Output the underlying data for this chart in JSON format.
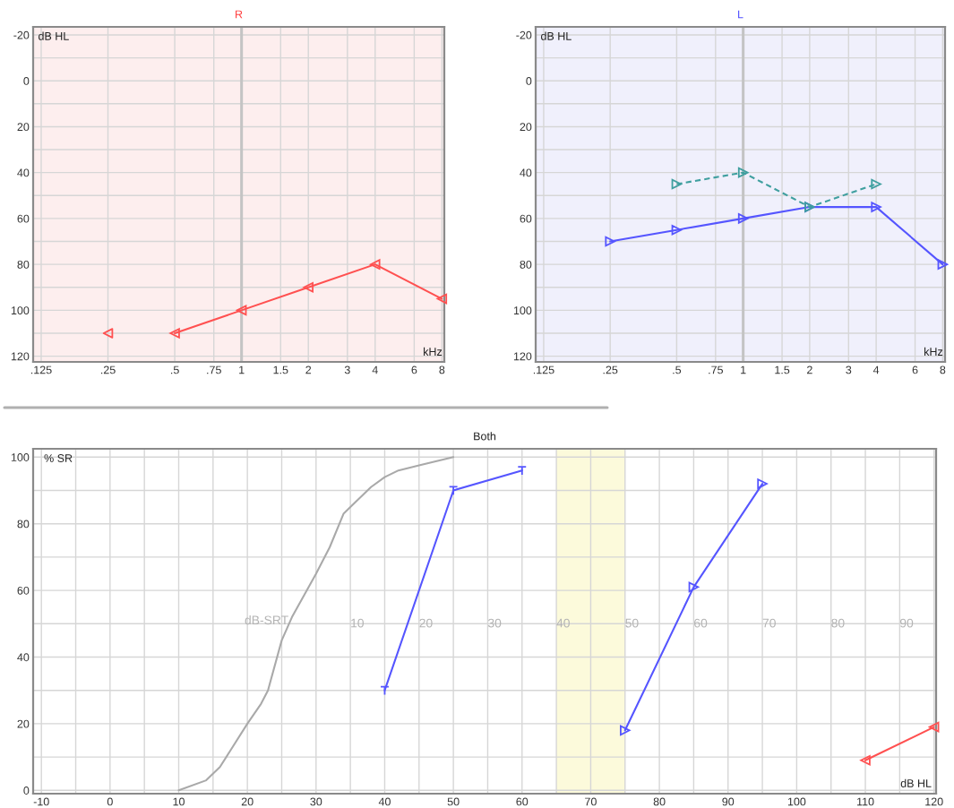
{
  "chart_data": [
    {
      "type": "line",
      "title": "R",
      "ylabel": "dB HL",
      "xlabel": "kHz",
      "log": "x",
      "grid": true,
      "xlim": [
        0.115,
        8.2
      ],
      "xticks": [
        {
          "value": 0.125,
          "label": ".125"
        },
        {
          "value": 0.25,
          "label": ".25"
        },
        {
          "value": 0.5,
          "label": ".5"
        },
        {
          "value": 0.75,
          "label": ".75"
        },
        1,
        1.5,
        2,
        3,
        4,
        6,
        8
      ],
      "ylim": [
        122.5,
        -23.5
      ],
      "yticks": [
        -20,
        {
          "value": -10,
          "label": null
        },
        0,
        {
          "value": 10,
          "label": null
        },
        20,
        {
          "value": 30,
          "label": null
        },
        40,
        {
          "value": 50,
          "label": null
        },
        60,
        {
          "value": 70,
          "label": null
        },
        80,
        {
          "value": 90,
          "label": null
        },
        100,
        {
          "value": 110,
          "label": null
        },
        120
      ],
      "ref_lines": [
        {
          "axis": "x",
          "value": 1,
          "color": "#c4c4c4"
        }
      ],
      "series": [
        {
          "color": "#ff5050",
          "x": [
            0.5,
            1,
            2,
            4,
            8
          ],
          "values": [
            110,
            100,
            90,
            80,
            95
          ],
          "marker": "triangle",
          "line_style": "solid"
        },
        {
          "type": "scatter",
          "color": "#ff5050",
          "x": [
            0.25
          ],
          "values": [
            110
          ],
          "marker": "triangle"
        }
      ]
    },
    {
      "type": "line",
      "title": "L",
      "ylabel": "dB HL",
      "xlabel": "kHz",
      "log": "x",
      "grid": true,
      "xlim": [
        0.115,
        8.2
      ],
      "xticks": [
        {
          "value": 0.125,
          "label": ".125"
        },
        {
          "value": 0.25,
          "label": ".25"
        },
        {
          "value": 0.5,
          "label": ".5"
        },
        {
          "value": 0.75,
          "label": ".75"
        },
        1,
        1.5,
        2,
        3,
        4,
        6,
        8
      ],
      "ylim": [
        122.5,
        -23.5
      ],
      "yticks": [
        -20,
        {
          "value": -10,
          "label": null
        },
        0,
        {
          "value": 10,
          "label": null
        },
        20,
        {
          "value": 30,
          "label": null
        },
        40,
        {
          "value": 50,
          "label": null
        },
        60,
        {
          "value": 70,
          "label": null
        },
        80,
        {
          "value": 90,
          "label": null
        },
        100,
        {
          "value": 110,
          "label": null
        },
        120
      ],
      "ref_lines": [
        {
          "axis": "x",
          "value": 1,
          "color": "#c4c4c4"
        }
      ],
      "series": [
        {
          "color": "#5555ff",
          "x": [
            0.25,
            0.5,
            1,
            2,
            4,
            8
          ],
          "values": [
            70,
            65,
            60,
            55,
            55,
            80
          ],
          "marker": "triangle",
          "line_style": "solid"
        },
        {
          "color": "#3f9f9f",
          "x": [
            0.5,
            1,
            2,
            4
          ],
          "values": [
            45,
            40,
            55,
            45
          ],
          "marker": "triangle",
          "line_style": "dashed"
        }
      ]
    },
    {
      "type": "line",
      "title": "Both",
      "ylabel": "% SR",
      "xlabel": "dB HL",
      "grid": true,
      "xlim": [
        -11.2,
        120.3
      ],
      "xticks": [
        -10,
        {
          "value": -5,
          "label": null
        },
        0,
        {
          "value": 5,
          "label": null
        },
        10,
        {
          "value": 15,
          "label": null
        },
        20,
        {
          "value": 25,
          "label": null
        },
        30,
        {
          "value": 35,
          "label": null
        },
        40,
        {
          "value": 45,
          "label": null
        },
        50,
        {
          "value": 55,
          "label": null
        },
        60,
        {
          "value": 65,
          "label": null
        },
        70,
        {
          "value": 75,
          "label": null
        },
        80,
        {
          "value": 85,
          "label": null
        },
        90,
        {
          "value": 95,
          "label": null
        },
        100,
        {
          "value": 105,
          "label": null
        },
        110,
        {
          "value": 115,
          "label": null
        },
        120
      ],
      "ylim": [
        -1,
        102.5
      ],
      "yticks": [
        0,
        {
          "value": 10,
          "label": null
        },
        20,
        {
          "value": 30,
          "label": null
        },
        40,
        {
          "value": 50,
          "label": null
        },
        60,
        {
          "value": 70,
          "label": null
        },
        80,
        {
          "value": 90,
          "label": null
        },
        100
      ],
      "x2label": "dB-SRT",
      "x2lim": [
        -37.2,
        94.3
      ],
      "x2ticks": [
        10,
        20,
        30,
        40,
        50,
        60,
        70,
        80,
        90
      ],
      "bands": [
        {
          "axis": "x",
          "from": 65,
          "to": 75,
          "color": "#fcfadb"
        }
      ],
      "series": [
        {
          "color": "#a9a9a9",
          "x": [
            10,
            14,
            16,
            20,
            22,
            23,
            25,
            26.5,
            30,
            32,
            34,
            35,
            38,
            40,
            42,
            45,
            50
          ],
          "values": [
            0,
            3,
            7,
            20,
            26,
            30,
            45,
            52,
            65,
            73,
            83,
            85,
            91,
            94,
            96,
            97.5,
            100
          ],
          "marker": "none",
          "line_style": "solid"
        },
        {
          "color": "#5555ff",
          "x": [
            40,
            50,
            60
          ],
          "values": [
            30,
            90,
            96
          ],
          "marker": "cross",
          "line_style": "solid"
        },
        {
          "color": "#5555ff",
          "x": [
            75,
            85,
            95
          ],
          "values": [
            18,
            61,
            92
          ],
          "marker": "triangle",
          "line_style": "solid"
        },
        {
          "color": "#ff5050",
          "x": [
            110,
            120
          ],
          "values": [
            9,
            19
          ],
          "marker": "triangle",
          "line_style": "solid"
        }
      ]
    }
  ]
}
